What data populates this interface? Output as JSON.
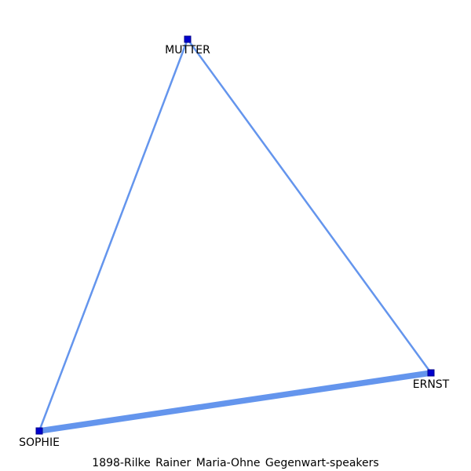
{
  "caption": "1898-Rilke_Rainer_Maria-Ohne_Gegenwart-speakers",
  "colors": {
    "edge": "#6495ED",
    "node_fill": "#0000CD",
    "node_stroke": "#00008B",
    "label": "#000000"
  },
  "nodes": [
    {
      "id": "MUTTER",
      "label": "MUTTER"
    },
    {
      "id": "ERNST",
      "label": "ERNST"
    },
    {
      "id": "SOPHIE",
      "label": "SOPHIE"
    }
  ],
  "edges": [
    {
      "source": "MUTTER",
      "target": "ERNST",
      "weight": 1
    },
    {
      "source": "MUTTER",
      "target": "SOPHIE",
      "weight": 1
    },
    {
      "source": "ERNST",
      "target": "SOPHIE",
      "weight": 3
    }
  ]
}
